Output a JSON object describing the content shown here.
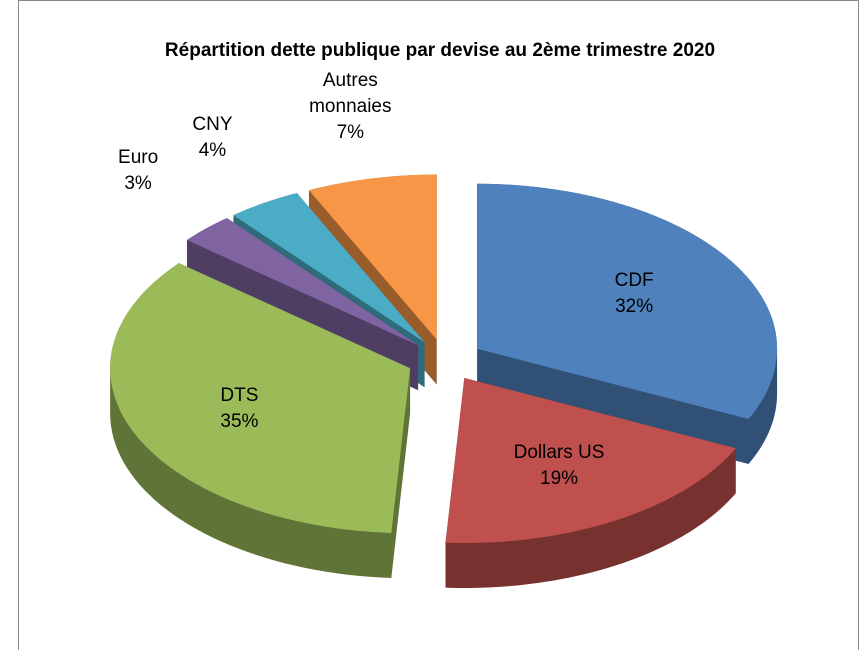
{
  "chart_data": {
    "type": "pie3d",
    "title": "Répartition dette publique par devise au 2ème trimestre 2020",
    "categories": [
      "CDF",
      "Dollars US",
      "DTS",
      "Euro",
      "CNY",
      "Autres monnaies"
    ],
    "values": [
      32,
      19,
      35,
      3,
      4,
      7
    ],
    "value_labels": [
      "32%",
      "19%",
      "35%",
      "3%",
      "4%",
      "7%"
    ],
    "colors": [
      "#4f81bd",
      "#c0504d",
      "#9bbb59",
      "#8064a2",
      "#4bacc6",
      "#f79646"
    ]
  }
}
